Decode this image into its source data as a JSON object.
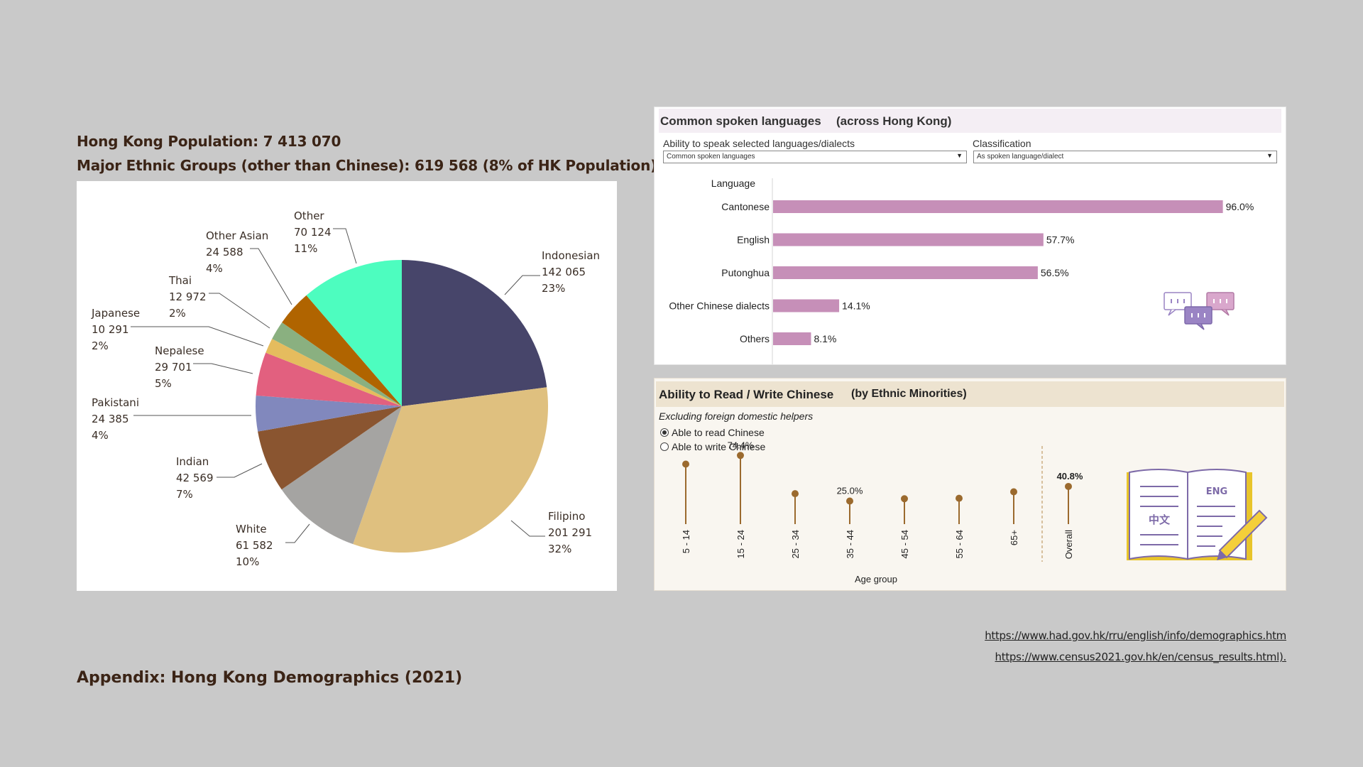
{
  "header": {
    "population_line": "Hong Kong Population: 7 413 070",
    "ethnic_line": "Major Ethnic Groups (other than Chinese): 619 568 (8% of HK Population)"
  },
  "appendix_title": "Appendix: Hong Kong Demographics (2021)",
  "links": [
    "https://www.had.gov.hk/rru/english/info/demographics.htm",
    "https://www.census2021.gov.hk/en/census_results.html)."
  ],
  "chart_data": [
    {
      "type": "pie",
      "title": "Major Ethnic Groups (other than Chinese)",
      "slices": [
        {
          "name": "Indonesian",
          "value": 142065,
          "value_label": "142 065",
          "pct": "23%",
          "color": "#47456a"
        },
        {
          "name": "Filipino",
          "value": 201291,
          "value_label": "201 291",
          "pct": "32%",
          "color": "#dfc07f"
        },
        {
          "name": "White",
          "value": 61582,
          "value_label": "61 582",
          "pct": "10%",
          "color": "#a5a4a2"
        },
        {
          "name": "Indian",
          "value": 42569,
          "value_label": "42 569",
          "pct": "7%",
          "color": "#8a5530"
        },
        {
          "name": "Pakistani",
          "value": 24385,
          "value_label": "24 385",
          "pct": "4%",
          "color": "#8188bd"
        },
        {
          "name": "Nepalese",
          "value": 29701,
          "value_label": "29 701",
          "pct": "5%",
          "color": "#e2607f"
        },
        {
          "name": "Japanese",
          "value": 10291,
          "value_label": "10 291",
          "pct": "2%",
          "color": "#e5bc5e"
        },
        {
          "name": "Thai",
          "value": 12972,
          "value_label": "12 972",
          "pct": "2%",
          "color": "#8ab080"
        },
        {
          "name": "Other Asian",
          "value": 24588,
          "value_label": "24 588",
          "pct": "4%",
          "color": "#b06400"
        },
        {
          "name": "Other",
          "value": 70124,
          "value_label": "70 124",
          "pct": "11%",
          "color": "#4dfdbf"
        }
      ]
    },
    {
      "type": "bar",
      "orientation": "horizontal",
      "title": "Common spoken languages",
      "subtitle": "(across Hong Kong)",
      "ylabel": "Language",
      "categories": [
        "Cantonese",
        "English",
        "Putonghua",
        "Other Chinese dialects",
        "Others"
      ],
      "values": [
        96.0,
        57.7,
        56.5,
        14.1,
        8.1
      ],
      "value_labels": [
        "96.0%",
        "57.7%",
        "56.5%",
        "14.1%",
        "8.1%"
      ],
      "xlim": [
        0,
        100
      ],
      "bar_color": "#c68fb8",
      "filters": {
        "ability_label": "Ability to speak selected languages/dialects",
        "ability_value": "Common spoken languages",
        "class_label": "Classification",
        "class_value": "As spoken language/dialect"
      }
    },
    {
      "type": "lollipop",
      "title": "Ability to Read / Write Chinese",
      "subtitle": "(by Ethnic Minorities)",
      "note": "Excluding foreign domestic helpers",
      "options": [
        "Able to read Chinese",
        "Able to write Chinese"
      ],
      "selected_option": "Able to read Chinese",
      "xlabel": "Age group",
      "categories": [
        "5 - 14",
        "15 - 24",
        "25 - 34",
        "35 - 44",
        "45 - 54",
        "55 - 64",
        "65+",
        "Overall"
      ],
      "values": [
        65.0,
        74.4,
        33.0,
        25.0,
        27.5,
        28.0,
        35.0,
        40.8
      ],
      "value_labels": {
        "15 - 24": "74.4%",
        "35 - 44": "25.0%",
        "Overall": "40.8%"
      },
      "ylim": [
        0,
        100
      ],
      "color": "#9b6a2e"
    }
  ],
  "icons": {
    "chat": "speech-bubbles-icon",
    "book": "bilingual-book-icon",
    "book_left_text": "中文",
    "book_right_text": "ENG"
  }
}
